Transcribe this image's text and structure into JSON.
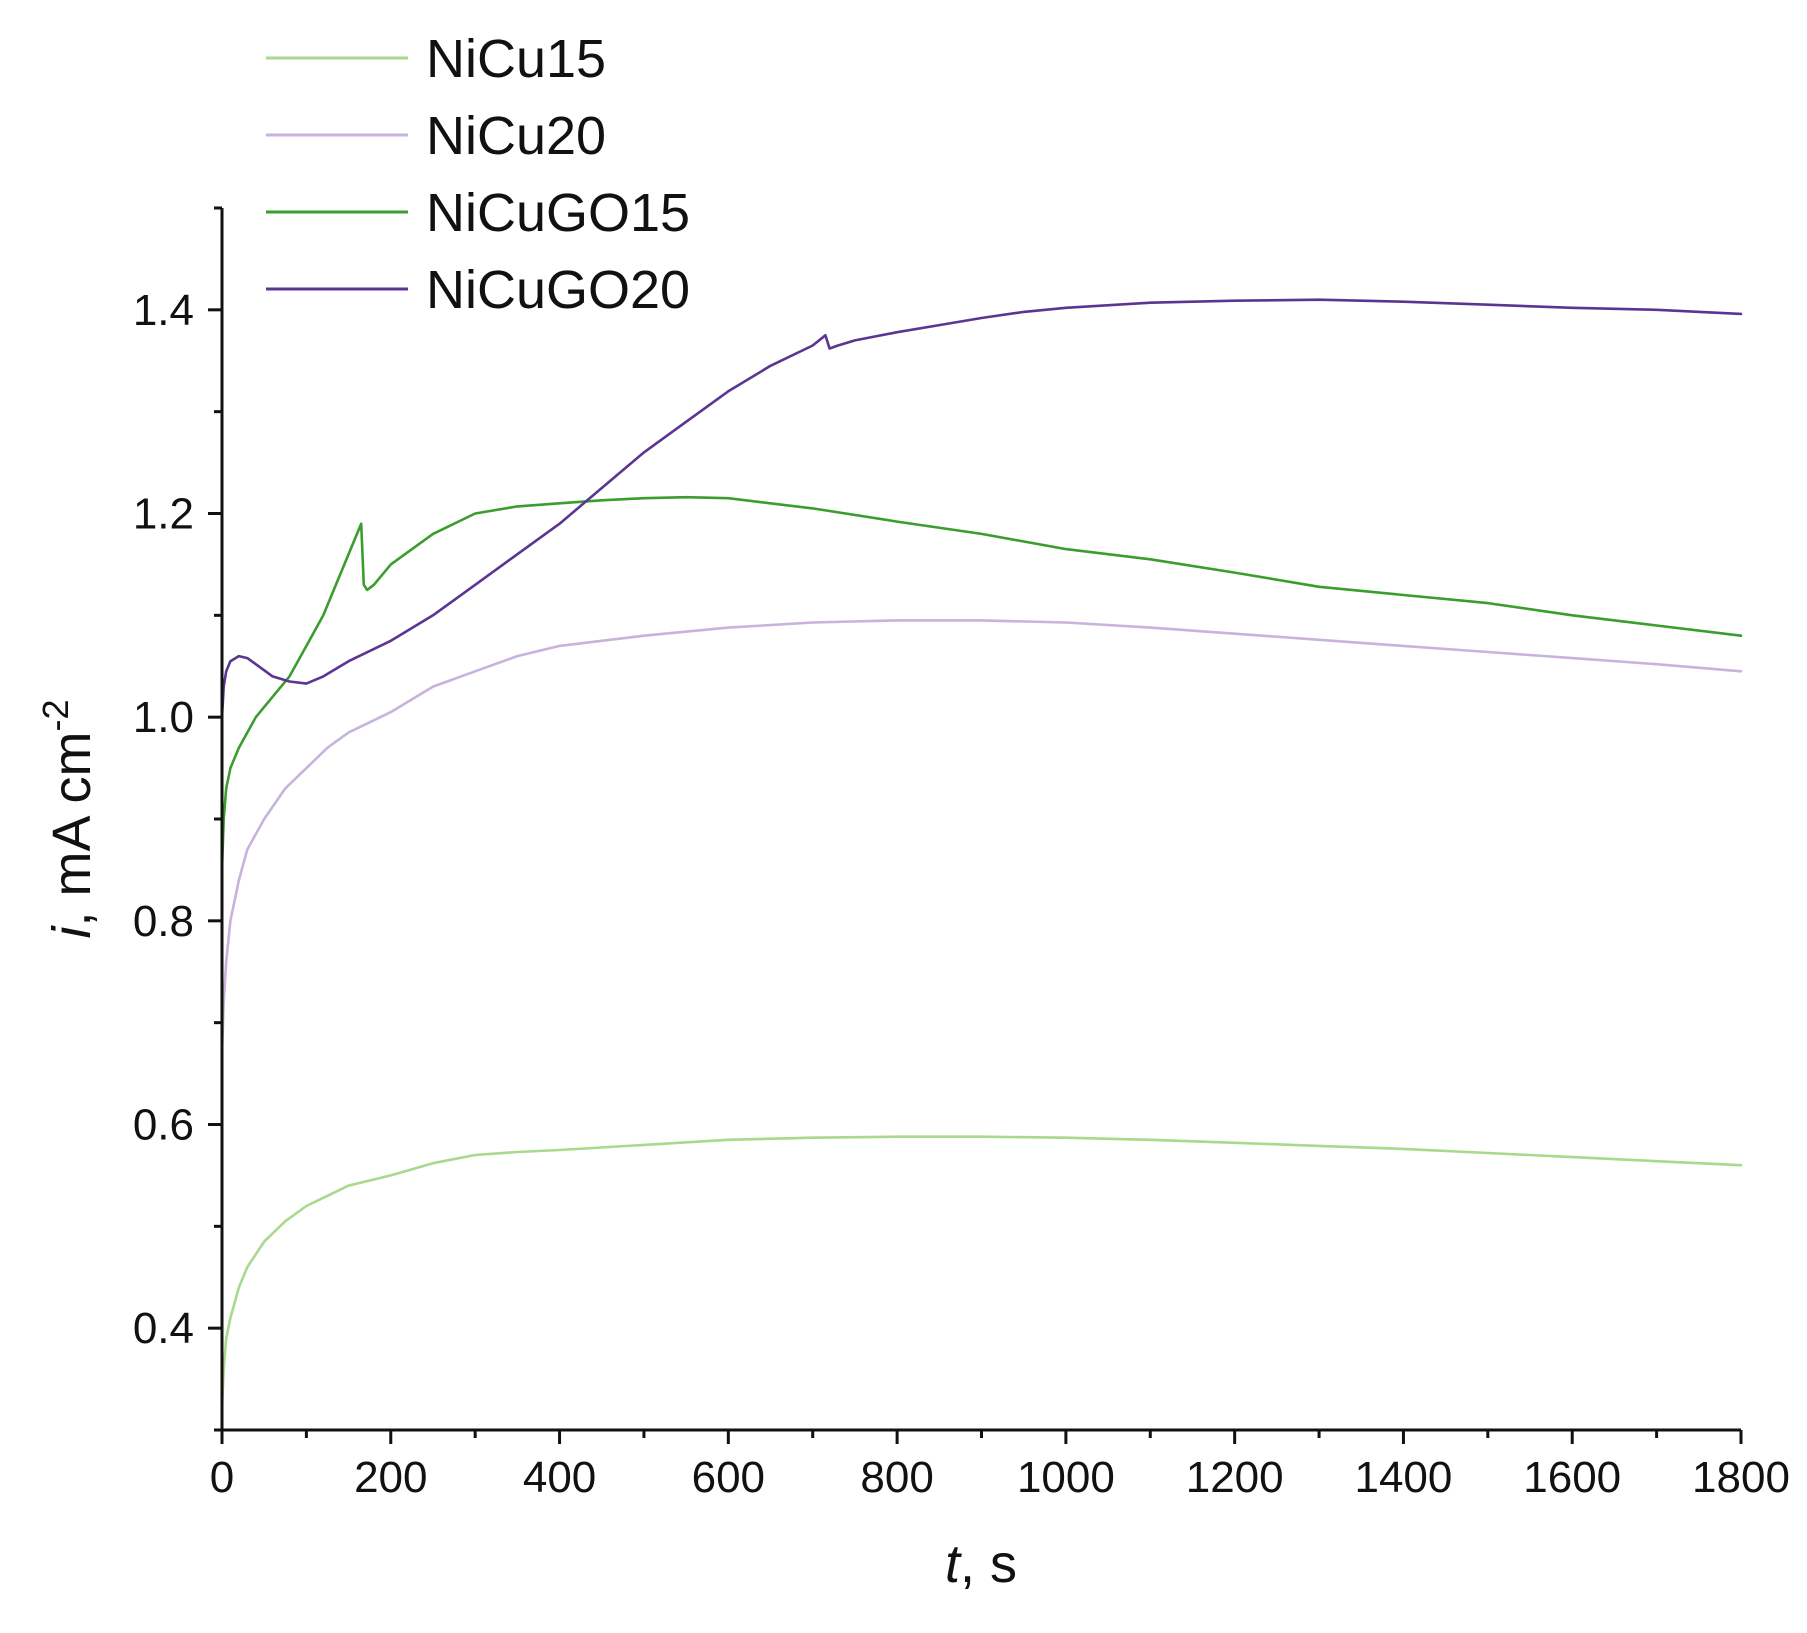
{
  "chart_data": {
    "type": "line",
    "xlabel_italic": "t",
    "xlabel_rest": ", s",
    "ylabel_italic": "i",
    "ylabel_rest": ", mA cm",
    "ylabel_sup": "-2",
    "xlim": [
      0,
      1800
    ],
    "ylim": [
      0.3,
      1.5
    ],
    "xticks": [
      0,
      200,
      400,
      600,
      800,
      1000,
      1200,
      1400,
      1600,
      1800
    ],
    "xtick_labels": [
      "0",
      "200",
      "400",
      "600",
      "800",
      "1000",
      "1200",
      "1400",
      "1600",
      "1800"
    ],
    "x_minor_step": 100,
    "yticks": [
      0.4,
      0.6,
      0.8,
      1.0,
      1.2,
      1.4
    ],
    "ytick_labels": [
      "0.4",
      "0.6",
      "0.8",
      "1.0",
      "1.2",
      "1.4"
    ],
    "y_minor_step": 0.1,
    "grid": false,
    "legend_position": "top-left",
    "series": [
      {
        "name": "NiCu15",
        "color": "#a8d98c",
        "x": [
          0,
          2,
          5,
          10,
          20,
          30,
          50,
          75,
          100,
          125,
          150,
          175,
          200,
          250,
          300,
          350,
          400,
          500,
          600,
          700,
          800,
          900,
          1000,
          1100,
          1200,
          1300,
          1400,
          1500,
          1600,
          1700,
          1800
        ],
        "y": [
          0.32,
          0.36,
          0.39,
          0.41,
          0.44,
          0.46,
          0.485,
          0.505,
          0.52,
          0.53,
          0.54,
          0.545,
          0.55,
          0.562,
          0.57,
          0.573,
          0.575,
          0.58,
          0.585,
          0.587,
          0.588,
          0.588,
          0.587,
          0.585,
          0.582,
          0.579,
          0.576,
          0.572,
          0.568,
          0.564,
          0.56
        ]
      },
      {
        "name": "NiCu20",
        "color": "#c7b3dc",
        "x": [
          0,
          2,
          5,
          10,
          20,
          30,
          50,
          75,
          100,
          125,
          150,
          175,
          200,
          250,
          300,
          350,
          400,
          500,
          600,
          700,
          800,
          900,
          1000,
          1100,
          1200,
          1300,
          1400,
          1500,
          1600,
          1700,
          1800
        ],
        "y": [
          0.67,
          0.72,
          0.76,
          0.8,
          0.84,
          0.87,
          0.9,
          0.93,
          0.95,
          0.97,
          0.985,
          0.995,
          1.005,
          1.03,
          1.045,
          1.06,
          1.07,
          1.08,
          1.088,
          1.093,
          1.095,
          1.095,
          1.093,
          1.088,
          1.082,
          1.076,
          1.07,
          1.064,
          1.058,
          1.052,
          1.045
        ]
      },
      {
        "name": "NiCuGO15",
        "color": "#3a9d2e",
        "x": [
          0,
          2,
          5,
          10,
          20,
          40,
          60,
          80,
          100,
          120,
          140,
          160,
          165,
          168,
          172,
          180,
          200,
          250,
          300,
          350,
          400,
          450,
          500,
          550,
          600,
          700,
          800,
          900,
          1000,
          1100,
          1200,
          1300,
          1400,
          1500,
          1600,
          1700,
          1800
        ],
        "y": [
          0.85,
          0.9,
          0.93,
          0.95,
          0.97,
          1.0,
          1.02,
          1.04,
          1.07,
          1.1,
          1.14,
          1.18,
          1.19,
          1.13,
          1.125,
          1.13,
          1.15,
          1.18,
          1.2,
          1.207,
          1.21,
          1.213,
          1.215,
          1.216,
          1.215,
          1.205,
          1.192,
          1.18,
          1.165,
          1.155,
          1.142,
          1.128,
          1.12,
          1.112,
          1.1,
          1.09,
          1.08
        ]
      },
      {
        "name": "NiCuGO20",
        "color": "#5a3592",
        "x": [
          0,
          2,
          5,
          10,
          20,
          30,
          40,
          60,
          80,
          100,
          120,
          150,
          200,
          250,
          300,
          350,
          400,
          450,
          500,
          550,
          600,
          650,
          700,
          715,
          720,
          730,
          750,
          800,
          850,
          900,
          950,
          1000,
          1100,
          1200,
          1300,
          1400,
          1500,
          1600,
          1700,
          1800
        ],
        "y": [
          1.0,
          1.03,
          1.045,
          1.055,
          1.06,
          1.058,
          1.052,
          1.04,
          1.035,
          1.033,
          1.04,
          1.055,
          1.075,
          1.1,
          1.13,
          1.16,
          1.19,
          1.225,
          1.26,
          1.29,
          1.32,
          1.345,
          1.365,
          1.375,
          1.362,
          1.365,
          1.37,
          1.378,
          1.385,
          1.392,
          1.398,
          1.402,
          1.407,
          1.409,
          1.41,
          1.408,
          1.405,
          1.402,
          1.4,
          1.396
        ]
      }
    ]
  }
}
